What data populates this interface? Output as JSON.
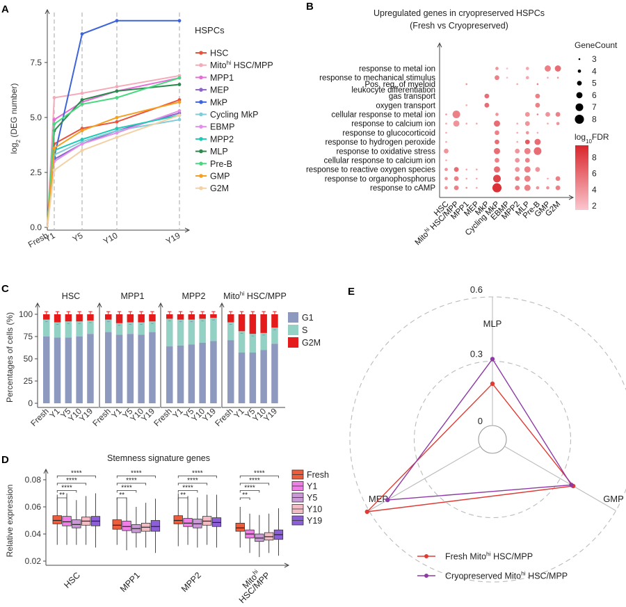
{
  "panels": {
    "A": {
      "letter": "A",
      "ylabel_main": "log",
      "ylabel_sub": "2",
      "ylabel_rest": " (DEG number)",
      "legend_title": "HSPCs"
    },
    "B": {
      "letter": "B"
    },
    "C": {
      "letter": "C"
    },
    "D": {
      "letter": "D"
    },
    "E": {
      "letter": "E"
    }
  },
  "chart_data": [
    {
      "id": "A",
      "type": "line",
      "xlabel": "",
      "x_categories": [
        "Fresh",
        "Y1",
        "Y5",
        "Y10",
        "Y19"
      ],
      "x_positions": [
        0,
        1,
        5,
        10,
        19
      ],
      "ylim": [
        0,
        10
      ],
      "yticks": [
        0.0,
        2.5,
        5.0,
        7.5
      ],
      "ytick_labels": [
        "0.0",
        "2.5",
        "5.0",
        "7.5"
      ],
      "series": [
        {
          "name": "HSC",
          "color": "#e8533d",
          "values": [
            0,
            3.8,
            4.5,
            4.8,
            5.8
          ]
        },
        {
          "name": "Mito^hi HSC/MPP",
          "label_main": "Mito",
          "label_sup": "hi",
          "label_rest": " HSC/MPP",
          "color": "#f4aab8",
          "values": [
            0,
            5.9,
            6.1,
            6.4,
            6.9
          ]
        },
        {
          "name": "MPP1",
          "color": "#e76ed8",
          "values": [
            0,
            4.9,
            5.7,
            6.2,
            6.8
          ]
        },
        {
          "name": "MEP",
          "color": "#8a64c8",
          "values": [
            0,
            3.1,
            3.8,
            4.4,
            5.2
          ]
        },
        {
          "name": "MkP",
          "color": "#3d64d8",
          "values": [
            0,
            3.2,
            8.8,
            9.4,
            9.4
          ]
        },
        {
          "name": "Cycling MkP",
          "color": "#80ccd8",
          "values": [
            0,
            3.3,
            3.9,
            4.4,
            4.9
          ]
        },
        {
          "name": "EBMP",
          "color": "#e090e8",
          "values": [
            0,
            3.0,
            3.8,
            4.3,
            5.3
          ]
        },
        {
          "name": "MPP2",
          "color": "#1fc9b4",
          "values": [
            0,
            3.5,
            4.0,
            4.5,
            5.1
          ]
        },
        {
          "name": "MLP",
          "color": "#2d8a4e",
          "values": [
            0,
            4.4,
            5.8,
            6.2,
            6.5
          ]
        },
        {
          "name": "Pre-B",
          "color": "#48d880",
          "values": [
            0,
            4.7,
            5.6,
            5.9,
            6.8
          ]
        },
        {
          "name": "GMP",
          "color": "#f5a020",
          "values": [
            0,
            3.6,
            4.4,
            5.0,
            5.7
          ]
        },
        {
          "name": "G2M",
          "color": "#f2d1a6",
          "values": [
            0,
            2.6,
            3.5,
            4.1,
            5.1
          ]
        }
      ]
    },
    {
      "id": "B",
      "type": "dot",
      "title_line1": "Upregulated genes in cryopreserved HSPCs",
      "title_line2": "(Fresh vs Cryopreserved)",
      "columns": [
        "HSC",
        "Mito^hi HSC/MPP",
        "MPP1",
        "MEP",
        "MkP",
        "Cycling MkP",
        "EBMP",
        "MPP2",
        "MLP",
        "Pre-B",
        "GMP",
        "G2M"
      ],
      "column_labels": [
        "HSC",
        "Mitohi HSC/MPP",
        "MPP1",
        "MEP",
        "MkP",
        "Cycling MkP",
        "EBMP",
        "MPP2",
        "MLP",
        "Pre-B",
        "GMP",
        "G2M"
      ],
      "rows": [
        "response to metal ion",
        "response to mechanical stimulus",
        "Pos. reg. of myeloid",
        "leukocyte differentiation",
        "gas transport",
        "oxygen transport",
        "cellular response to metal ion",
        "response to calcium ion",
        "response to glucocorticoid",
        "response to hydrogen peroxide",
        "response to oxidative stress",
        "cellular response to calcium ion",
        "response to reactive oxygen species",
        "response to organophosphorus",
        "response to cAMP"
      ],
      "row_slots": [
        0,
        1,
        1.7,
        2.3,
        3,
        4,
        5,
        6,
        7,
        8,
        9,
        10,
        11,
        12,
        13
      ],
      "points": [
        {
          "r": 0,
          "c": 5,
          "n": 4,
          "f": 4
        },
        {
          "r": 0,
          "c": 6,
          "n": 3,
          "f": 2
        },
        {
          "r": 0,
          "c": 8,
          "n": 4,
          "f": 3
        },
        {
          "r": 0,
          "c": 10,
          "n": 6,
          "f": 5
        },
        {
          "r": 0,
          "c": 11,
          "n": 6,
          "f": 6
        },
        {
          "r": 1,
          "c": 5,
          "n": 5,
          "f": 5
        },
        {
          "r": 1,
          "c": 6,
          "n": 3,
          "f": 2
        },
        {
          "r": 1,
          "c": 8,
          "n": 4,
          "f": 3
        },
        {
          "r": 1,
          "c": 10,
          "n": 3,
          "f": 3
        },
        {
          "r": 1,
          "c": 11,
          "n": 3,
          "f": 4
        },
        {
          "r": 2,
          "c": 2,
          "n": 3,
          "f": 4
        },
        {
          "r": 2,
          "c": 7,
          "n": 3,
          "f": 3
        },
        {
          "r": 2,
          "c": 9,
          "n": 3,
          "f": 5
        },
        {
          "r": 4,
          "c": 4,
          "n": 5,
          "f": 6
        },
        {
          "r": 4,
          "c": 9,
          "n": 5,
          "f": 5
        },
        {
          "r": 5,
          "c": 2,
          "n": 3,
          "f": 3
        },
        {
          "r": 5,
          "c": 4,
          "n": 5,
          "f": 6
        },
        {
          "r": 5,
          "c": 9,
          "n": 5,
          "f": 5
        },
        {
          "r": 6,
          "c": 0,
          "n": 3,
          "f": 4
        },
        {
          "r": 6,
          "c": 1,
          "n": 7,
          "f": 5
        },
        {
          "r": 6,
          "c": 5,
          "n": 4,
          "f": 4
        },
        {
          "r": 6,
          "c": 8,
          "n": 5,
          "f": 4
        },
        {
          "r": 6,
          "c": 9,
          "n": 3,
          "f": 5
        },
        {
          "r": 6,
          "c": 10,
          "n": 5,
          "f": 4
        },
        {
          "r": 6,
          "c": 11,
          "n": 5,
          "f": 5
        },
        {
          "r": 7,
          "c": 0,
          "n": 3,
          "f": 3
        },
        {
          "r": 7,
          "c": 1,
          "n": 6,
          "f": 4
        },
        {
          "r": 7,
          "c": 2,
          "n": 3,
          "f": 3
        },
        {
          "r": 7,
          "c": 3,
          "n": 3,
          "f": 3
        },
        {
          "r": 7,
          "c": 5,
          "n": 6,
          "f": 6
        },
        {
          "r": 7,
          "c": 7,
          "n": 3,
          "f": 3
        },
        {
          "r": 7,
          "c": 8,
          "n": 5,
          "f": 4
        },
        {
          "r": 7,
          "c": 10,
          "n": 3,
          "f": 3
        },
        {
          "r": 7,
          "c": 11,
          "n": 4,
          "f": 4
        },
        {
          "r": 8,
          "c": 0,
          "n": 3,
          "f": 3
        },
        {
          "r": 8,
          "c": 5,
          "n": 5,
          "f": 5
        },
        {
          "r": 8,
          "c": 7,
          "n": 3,
          "f": 3
        },
        {
          "r": 8,
          "c": 8,
          "n": 4,
          "f": 4
        },
        {
          "r": 8,
          "c": 9,
          "n": 3,
          "f": 3
        },
        {
          "r": 9,
          "c": 0,
          "n": 3,
          "f": 3
        },
        {
          "r": 9,
          "c": 5,
          "n": 5,
          "f": 6
        },
        {
          "r": 9,
          "c": 7,
          "n": 3,
          "f": 3
        },
        {
          "r": 9,
          "c": 8,
          "n": 5,
          "f": 7
        },
        {
          "r": 9,
          "c": 9,
          "n": 6,
          "f": 6
        },
        {
          "r": 10,
          "c": 0,
          "n": 5,
          "f": 4
        },
        {
          "r": 10,
          "c": 5,
          "n": 6,
          "f": 6
        },
        {
          "r": 10,
          "c": 7,
          "n": 5,
          "f": 4
        },
        {
          "r": 10,
          "c": 8,
          "n": 6,
          "f": 5
        },
        {
          "r": 10,
          "c": 9,
          "n": 7,
          "f": 6
        },
        {
          "r": 11,
          "c": 0,
          "n": 3,
          "f": 3
        },
        {
          "r": 11,
          "c": 5,
          "n": 5,
          "f": 5
        },
        {
          "r": 11,
          "c": 7,
          "n": 5,
          "f": 4
        },
        {
          "r": 11,
          "c": 8,
          "n": 5,
          "f": 5
        },
        {
          "r": 12,
          "c": 0,
          "n": 4,
          "f": 4
        },
        {
          "r": 12,
          "c": 1,
          "n": 5,
          "f": 6
        },
        {
          "r": 12,
          "c": 2,
          "n": 3,
          "f": 3
        },
        {
          "r": 12,
          "c": 3,
          "n": 3,
          "f": 3
        },
        {
          "r": 12,
          "c": 5,
          "n": 6,
          "f": 6
        },
        {
          "r": 12,
          "c": 7,
          "n": 5,
          "f": 4
        },
        {
          "r": 12,
          "c": 8,
          "n": 6,
          "f": 5
        },
        {
          "r": 12,
          "c": 9,
          "n": 5,
          "f": 4
        },
        {
          "r": 13,
          "c": 0,
          "n": 4,
          "f": 4
        },
        {
          "r": 13,
          "c": 1,
          "n": 5,
          "f": 5
        },
        {
          "r": 13,
          "c": 2,
          "n": 3,
          "f": 3
        },
        {
          "r": 13,
          "c": 3,
          "n": 3,
          "f": 3
        },
        {
          "r": 13,
          "c": 5,
          "n": 7,
          "f": 8
        },
        {
          "r": 13,
          "c": 7,
          "n": 5,
          "f": 5
        },
        {
          "r": 13,
          "c": 8,
          "n": 6,
          "f": 5
        },
        {
          "r": 13,
          "c": 10,
          "n": 3,
          "f": 3
        },
        {
          "r": 13,
          "c": 11,
          "n": 5,
          "f": 5
        },
        {
          "r": 14,
          "c": 0,
          "n": 4,
          "f": 4
        },
        {
          "r": 14,
          "c": 1,
          "n": 5,
          "f": 5
        },
        {
          "r": 14,
          "c": 2,
          "n": 3,
          "f": 4
        },
        {
          "r": 14,
          "c": 3,
          "n": 3,
          "f": 3
        },
        {
          "r": 14,
          "c": 5,
          "n": 8,
          "f": 9
        },
        {
          "r": 14,
          "c": 7,
          "n": 5,
          "f": 5
        },
        {
          "r": 14,
          "c": 8,
          "n": 6,
          "f": 5
        },
        {
          "r": 14,
          "c": 9,
          "n": 4,
          "f": 4
        },
        {
          "r": 14,
          "c": 10,
          "n": 4,
          "f": 4
        },
        {
          "r": 14,
          "c": 11,
          "n": 5,
          "f": 5
        }
      ],
      "size_legend_title": "GeneCount",
      "size_legend_values": [
        3,
        4,
        5,
        6,
        7,
        8
      ],
      "color_legend_title_main": "log",
      "color_legend_title_sub": "10",
      "color_legend_title_rest": "FDR",
      "color_legend_ticks": [
        2,
        4,
        6,
        8
      ],
      "color_range": [
        1.5,
        9.5
      ],
      "color_low": "#fbc6cf",
      "color_high": "#d9262b"
    },
    {
      "id": "C",
      "type": "stacked-bar",
      "ylabel": "Percentages of cells (%)",
      "yticks": [
        0,
        25,
        50,
        75,
        100
      ],
      "ylim": [
        0,
        100
      ],
      "stack_order": [
        "G1",
        "S",
        "G2M"
      ],
      "colors": {
        "G1": "#8d99bf",
        "S": "#92d1c3",
        "G2M": "#e51a1a"
      },
      "legend": [
        "G1",
        "S",
        "G2M"
      ],
      "categories": [
        "Fresh",
        "Y1",
        "Y5",
        "Y10",
        "Y19"
      ],
      "groups": [
        {
          "name": "HSC",
          "label_main": "HSC",
          "label_sup": "",
          "label_rest": "",
          "G1": [
            75,
            74,
            74,
            75,
            78
          ],
          "S": [
            19,
            17,
            18,
            17,
            15
          ]
        },
        {
          "name": "MPP1",
          "label_main": "MPP1",
          "label_sup": "",
          "label_rest": "",
          "G1": [
            80,
            77,
            78,
            77,
            80
          ],
          "S": [
            14,
            13,
            13,
            14,
            12
          ]
        },
        {
          "name": "MPP2",
          "label_main": "MPP2",
          "label_sup": "",
          "label_rest": "",
          "G1": [
            64,
            65,
            66,
            68,
            70
          ],
          "S": [
            31,
            29,
            28,
            27,
            26
          ]
        },
        {
          "name": "Mito^hi HSC/MPP",
          "label_main": "Mito",
          "label_sup": "hi",
          "label_rest": " HSC/MPP",
          "G1": [
            71,
            57,
            57,
            60,
            67
          ],
          "S": [
            20,
            24,
            21,
            19,
            18
          ]
        }
      ]
    },
    {
      "id": "D",
      "type": "box",
      "title": "Stemness signature genes",
      "ylabel": "Relative expression",
      "ylim": [
        0.018,
        0.087
      ],
      "yticks": [
        0.02,
        0.04,
        0.06,
        0.08
      ],
      "ytick_labels": [
        "0.02",
        "0.04",
        "0.06",
        "0.08"
      ],
      "series_names": [
        "Fresh",
        "Y1",
        "Y5",
        "Y10",
        "Y19"
      ],
      "series_colors": [
        "#ee5c3c",
        "#ef7fe6",
        "#c99ad6",
        "#f4bcc4",
        "#8c5fd9"
      ],
      "groups": [
        {
          "name": "HSC",
          "label_line1": "HSC",
          "label_line1_sup": "",
          "label_line2": "",
          "boxes": [
            [
              0.032,
              0.0475,
              0.05,
              0.0535,
              0.069
            ],
            [
              0.032,
              0.046,
              0.049,
              0.053,
              0.07
            ],
            [
              0.032,
              0.0445,
              0.047,
              0.0505,
              0.065
            ],
            [
              0.032,
              0.0465,
              0.0495,
              0.0525,
              0.068
            ],
            [
              0.03,
              0.046,
              0.0495,
              0.053,
              0.07
            ]
          ]
        },
        {
          "name": "MPP1",
          "label_line1": "MPP1",
          "label_line1_sup": "",
          "label_line2": "",
          "boxes": [
            [
              0.032,
              0.0435,
              0.0465,
              0.0505,
              0.067
            ],
            [
              0.028,
              0.0425,
              0.0455,
              0.0495,
              0.067
            ],
            [
              0.03,
              0.041,
              0.044,
              0.047,
              0.06
            ],
            [
              0.03,
              0.042,
              0.045,
              0.048,
              0.063
            ],
            [
              0.026,
              0.042,
              0.0455,
              0.05,
              0.066
            ]
          ]
        },
        {
          "name": "MPP2",
          "label_line1": "MPP2",
          "label_line1_sup": "",
          "label_line2": "",
          "boxes": [
            [
              0.031,
              0.0475,
              0.05,
              0.0535,
              0.07
            ],
            [
              0.032,
              0.0455,
              0.048,
              0.0515,
              0.068
            ],
            [
              0.03,
              0.0445,
              0.0475,
              0.051,
              0.067
            ],
            [
              0.032,
              0.0465,
              0.0495,
              0.053,
              0.069
            ],
            [
              0.03,
              0.0455,
              0.0485,
              0.052,
              0.069
            ]
          ]
        },
        {
          "name": "Mito^hi HSC/MPP",
          "label_line1": "Mito",
          "label_line1_sup": "hi",
          "label_line2": "HSC/MPP",
          "boxes": [
            [
              0.03,
              0.042,
              0.0445,
              0.048,
              0.06
            ],
            [
              0.026,
              0.037,
              0.04,
              0.043,
              0.055
            ],
            [
              0.023,
              0.0345,
              0.037,
              0.04,
              0.054
            ],
            [
              0.026,
              0.0355,
              0.038,
              0.041,
              0.055
            ],
            [
              0.024,
              0.036,
              0.0395,
              0.043,
              0.059
            ]
          ]
        }
      ],
      "significance": [
        {
          "to": "Y1",
          "label": "**"
        },
        {
          "to": "Y5",
          "label": "****"
        },
        {
          "to": "Y10",
          "label": "****"
        },
        {
          "to": "Y19",
          "label": "****"
        }
      ]
    },
    {
      "id": "E",
      "type": "radar",
      "axes": [
        "MLP",
        "GMP",
        "MEP"
      ],
      "max": 0.6,
      "ring_labels": [
        "0",
        "0.3",
        "0.6"
      ],
      "ring_values": [
        0,
        0.3,
        0.6
      ],
      "series": [
        {
          "name": "Fresh Mito^hi HSC/MPP",
          "label_main": "Fresh Mito",
          "label_sup": "hi",
          "label_rest": " HSC/MPP",
          "color": "#e03a32",
          "values": [
            0.195,
            0.37,
            0.61
          ]
        },
        {
          "name": "Cryopreserved Mito^hi HSC/MPP",
          "label_main": "Cryopreserved Mito",
          "label_sup": "hi",
          "label_rest": " HSC/MPP",
          "color": "#8e3aa6",
          "values": [
            0.31,
            0.36,
            0.5
          ]
        }
      ]
    }
  ]
}
